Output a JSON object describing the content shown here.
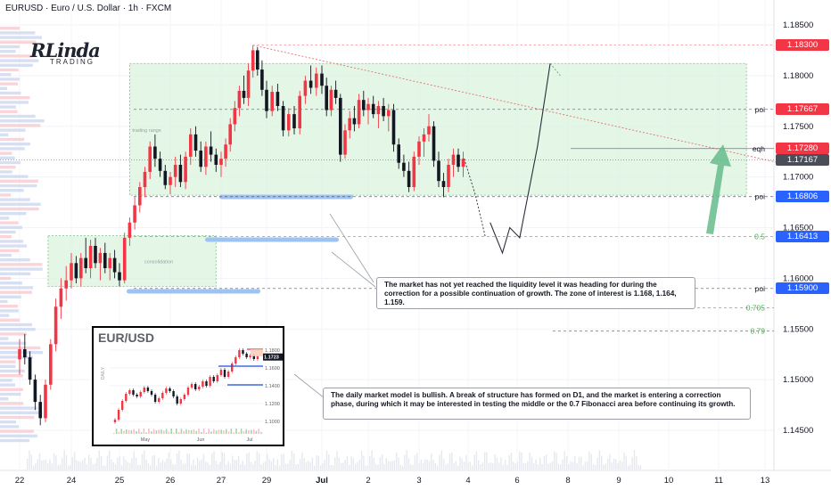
{
  "header": {
    "title": "EURUSD · Euro / U.S. Dollar · 1h · FXCM"
  },
  "logo": {
    "main": "RLinda",
    "sub": "TRADING"
  },
  "chart_data": {
    "type": "candlestick",
    "symbol": "EURUSD",
    "interval": "1h",
    "ylim": [
      1.1415,
      1.1875
    ],
    "y_ticks": [
      1.145,
      1.15,
      1.155,
      1.16,
      1.165,
      1.17,
      1.175,
      1.18,
      1.185
    ],
    "y_tick_labels": [
      "1.14500",
      "1.15000",
      "1.15500",
      "1.16000",
      "1.16500",
      "1.17000",
      "1.17500",
      "1.18000",
      "1.18500"
    ],
    "x_ticks": [
      {
        "label": "22",
        "t": 0
      },
      {
        "label": "24",
        "t": 1
      },
      {
        "label": "25",
        "t": 2
      },
      {
        "label": "26",
        "t": 3
      },
      {
        "label": "27",
        "t": 4
      },
      {
        "label": "29",
        "t": 5
      },
      {
        "label": "Jul",
        "t": 6
      },
      {
        "label": "2",
        "t": 7
      },
      {
        "label": "3",
        "t": 8
      },
      {
        "label": "4",
        "t": 9
      },
      {
        "label": "6",
        "t": 10
      },
      {
        "label": "8",
        "t": 11
      },
      {
        "label": "9",
        "t": 12
      },
      {
        "label": "10",
        "t": 13
      },
      {
        "label": "11",
        "t": 14
      },
      {
        "label": "13",
        "t": 15
      }
    ],
    "price_tags": [
      {
        "label": "1.18300",
        "value": 1.183,
        "color": "#f23645"
      },
      {
        "label": "1.17667",
        "value": 1.17667,
        "color": "#f23645"
      },
      {
        "label": "1.17280",
        "value": 1.1728,
        "color": "#f23645"
      },
      {
        "label": "1.17167",
        "value": 1.17167,
        "color": "#4a4e59"
      },
      {
        "label": "1.16806",
        "value": 1.16806,
        "color": "#2962ff"
      },
      {
        "label": "1.16413",
        "value": 1.16413,
        "color": "#2962ff"
      },
      {
        "label": "1.15900",
        "value": 1.159,
        "color": "#2962ff"
      }
    ],
    "levels": [
      {
        "label": "poi",
        "value": 1.17667
      },
      {
        "label": "eqh",
        "value": 1.1728
      },
      {
        "label": "poi",
        "value": 1.16806
      },
      {
        "label": "0.5",
        "value": 1.16413
      },
      {
        "label": "poi",
        "value": 1.159
      },
      {
        "label": "0.705",
        "value": 1.1571
      },
      {
        "label": "0.79",
        "value": 1.1548
      }
    ],
    "zones": [
      {
        "label": "trading range",
        "t0": 2.2,
        "t1": 14.6,
        "top": 1.1812,
        "bottom": 1.1682
      },
      {
        "label": "consolidation",
        "t0": 0.55,
        "t1": 3.9,
        "top": 1.1642,
        "bottom": 1.1592
      }
    ],
    "candles": [
      {
        "t": 0.0,
        "o": 1.152,
        "h": 1.154,
        "l": 1.1505,
        "c": 1.153
      },
      {
        "t": 0.1,
        "o": 1.153,
        "h": 1.1545,
        "l": 1.1515,
        "c": 1.1522
      },
      {
        "t": 0.2,
        "o": 1.1522,
        "h": 1.1528,
        "l": 1.1495,
        "c": 1.15
      },
      {
        "t": 0.3,
        "o": 1.15,
        "h": 1.1505,
        "l": 1.147,
        "c": 1.1478
      },
      {
        "t": 0.4,
        "o": 1.1478,
        "h": 1.1485,
        "l": 1.1455,
        "c": 1.1462
      },
      {
        "t": 0.5,
        "o": 1.1462,
        "h": 1.15,
        "l": 1.1458,
        "c": 1.1495
      },
      {
        "t": 0.6,
        "o": 1.1495,
        "h": 1.154,
        "l": 1.149,
        "c": 1.1535
      },
      {
        "t": 0.7,
        "o": 1.1535,
        "h": 1.158,
        "l": 1.1528,
        "c": 1.1572
      },
      {
        "t": 0.8,
        "o": 1.1572,
        "h": 1.16,
        "l": 1.156,
        "c": 1.159
      },
      {
        "t": 0.9,
        "o": 1.159,
        "h": 1.1612,
        "l": 1.1578,
        "c": 1.1598
      },
      {
        "t": 1.0,
        "o": 1.1598,
        "h": 1.1625,
        "l": 1.159,
        "c": 1.1615
      },
      {
        "t": 1.1,
        "o": 1.1615,
        "h": 1.1622,
        "l": 1.1595,
        "c": 1.16
      },
      {
        "t": 1.2,
        "o": 1.16,
        "h": 1.1625,
        "l": 1.1592,
        "c": 1.162
      },
      {
        "t": 1.3,
        "o": 1.162,
        "h": 1.164,
        "l": 1.1605,
        "c": 1.161
      },
      {
        "t": 1.4,
        "o": 1.161,
        "h": 1.1638,
        "l": 1.16,
        "c": 1.1632
      },
      {
        "t": 1.5,
        "o": 1.1632,
        "h": 1.164,
        "l": 1.161,
        "c": 1.1615
      },
      {
        "t": 1.6,
        "o": 1.1615,
        "h": 1.163,
        "l": 1.1598,
        "c": 1.1625
      },
      {
        "t": 1.7,
        "o": 1.1625,
        "h": 1.1635,
        "l": 1.1605,
        "c": 1.161
      },
      {
        "t": 1.8,
        "o": 1.161,
        "h": 1.1625,
        "l": 1.1598,
        "c": 1.162
      },
      {
        "t": 1.9,
        "o": 1.162,
        "h": 1.1628,
        "l": 1.16,
        "c": 1.1606
      },
      {
        "t": 2.0,
        "o": 1.1606,
        "h": 1.1615,
        "l": 1.1592,
        "c": 1.1598
      },
      {
        "t": 2.1,
        "o": 1.1598,
        "h": 1.1645,
        "l": 1.1595,
        "c": 1.164
      },
      {
        "t": 2.2,
        "o": 1.164,
        "h": 1.166,
        "l": 1.1632,
        "c": 1.1655
      },
      {
        "t": 2.3,
        "o": 1.1655,
        "h": 1.168,
        "l": 1.1648,
        "c": 1.1672
      },
      {
        "t": 2.4,
        "o": 1.1672,
        "h": 1.1695,
        "l": 1.1665,
        "c": 1.169
      },
      {
        "t": 2.5,
        "o": 1.169,
        "h": 1.171,
        "l": 1.168,
        "c": 1.1705
      },
      {
        "t": 2.6,
        "o": 1.1705,
        "h": 1.1735,
        "l": 1.1698,
        "c": 1.173
      },
      {
        "t": 2.7,
        "o": 1.173,
        "h": 1.1742,
        "l": 1.171,
        "c": 1.1718
      },
      {
        "t": 2.8,
        "o": 1.1718,
        "h": 1.1725,
        "l": 1.17,
        "c": 1.1706
      },
      {
        "t": 2.9,
        "o": 1.1706,
        "h": 1.1712,
        "l": 1.1688,
        "c": 1.1692
      },
      {
        "t": 3.0,
        "o": 1.1692,
        "h": 1.1705,
        "l": 1.1683,
        "c": 1.17
      },
      {
        "t": 3.1,
        "o": 1.17,
        "h": 1.172,
        "l": 1.169,
        "c": 1.1712
      },
      {
        "t": 3.2,
        "o": 1.1712,
        "h": 1.1722,
        "l": 1.169,
        "c": 1.1695
      },
      {
        "t": 3.3,
        "o": 1.1695,
        "h": 1.1725,
        "l": 1.1688,
        "c": 1.172
      },
      {
        "t": 3.4,
        "o": 1.172,
        "h": 1.1748,
        "l": 1.1712,
        "c": 1.1742
      },
      {
        "t": 3.5,
        "o": 1.1742,
        "h": 1.175,
        "l": 1.172,
        "c": 1.1726
      },
      {
        "t": 3.6,
        "o": 1.1726,
        "h": 1.1735,
        "l": 1.1705,
        "c": 1.171
      },
      {
        "t": 3.7,
        "o": 1.171,
        "h": 1.1735,
        "l": 1.1702,
        "c": 1.173
      },
      {
        "t": 3.8,
        "o": 1.173,
        "h": 1.1745,
        "l": 1.1715,
        "c": 1.1722
      },
      {
        "t": 3.9,
        "o": 1.1722,
        "h": 1.1728,
        "l": 1.1705,
        "c": 1.1712
      },
      {
        "t": 4.0,
        "o": 1.1712,
        "h": 1.1725,
        "l": 1.17,
        "c": 1.1718
      },
      {
        "t": 4.1,
        "o": 1.1718,
        "h": 1.1738,
        "l": 1.171,
        "c": 1.1732
      },
      {
        "t": 4.2,
        "o": 1.1732,
        "h": 1.1758,
        "l": 1.1725,
        "c": 1.1752
      },
      {
        "t": 4.3,
        "o": 1.1752,
        "h": 1.1775,
        "l": 1.1745,
        "c": 1.1768
      },
      {
        "t": 4.4,
        "o": 1.1768,
        "h": 1.179,
        "l": 1.176,
        "c": 1.1785
      },
      {
        "t": 4.5,
        "o": 1.1785,
        "h": 1.18,
        "l": 1.1772,
        "c": 1.1778
      },
      {
        "t": 4.6,
        "o": 1.1778,
        "h": 1.1812,
        "l": 1.177,
        "c": 1.1805
      },
      {
        "t": 4.7,
        "o": 1.1805,
        "h": 1.183,
        "l": 1.1798,
        "c": 1.1825
      },
      {
        "t": 4.8,
        "o": 1.1825,
        "h": 1.1828,
        "l": 1.18,
        "c": 1.1806
      },
      {
        "t": 4.9,
        "o": 1.1806,
        "h": 1.1815,
        "l": 1.178,
        "c": 1.1786
      },
      {
        "t": 5.0,
        "o": 1.1786,
        "h": 1.1795,
        "l": 1.1758,
        "c": 1.1765
      },
      {
        "t": 5.1,
        "o": 1.1765,
        "h": 1.179,
        "l": 1.176,
        "c": 1.1784
      },
      {
        "t": 5.2,
        "o": 1.1784,
        "h": 1.1792,
        "l": 1.1765,
        "c": 1.177
      },
      {
        "t": 5.3,
        "o": 1.177,
        "h": 1.1775,
        "l": 1.174,
        "c": 1.1746
      },
      {
        "t": 5.4,
        "o": 1.1746,
        "h": 1.1768,
        "l": 1.174,
        "c": 1.1762
      },
      {
        "t": 5.5,
        "o": 1.1762,
        "h": 1.177,
        "l": 1.1742,
        "c": 1.1748
      },
      {
        "t": 5.6,
        "o": 1.1748,
        "h": 1.1785,
        "l": 1.1742,
        "c": 1.178
      },
      {
        "t": 5.7,
        "o": 1.178,
        "h": 1.18,
        "l": 1.1772,
        "c": 1.1795
      },
      {
        "t": 5.8,
        "o": 1.1795,
        "h": 1.181,
        "l": 1.1782,
        "c": 1.1788
      },
      {
        "t": 5.9,
        "o": 1.1788,
        "h": 1.1808,
        "l": 1.178,
        "c": 1.1802
      },
      {
        "t": 6.0,
        "o": 1.1802,
        "h": 1.181,
        "l": 1.1782,
        "c": 1.179
      },
      {
        "t": 6.1,
        "o": 1.179,
        "h": 1.1798,
        "l": 1.176,
        "c": 1.1766
      },
      {
        "t": 6.2,
        "o": 1.1766,
        "h": 1.179,
        "l": 1.176,
        "c": 1.1786
      },
      {
        "t": 6.3,
        "o": 1.1786,
        "h": 1.1795,
        "l": 1.1772,
        "c": 1.1778
      },
      {
        "t": 6.4,
        "o": 1.1778,
        "h": 1.1782,
        "l": 1.1715,
        "c": 1.1722
      },
      {
        "t": 6.5,
        "o": 1.1722,
        "h": 1.1752,
        "l": 1.1718,
        "c": 1.1746
      },
      {
        "t": 6.6,
        "o": 1.1746,
        "h": 1.1765,
        "l": 1.1738,
        "c": 1.1758
      },
      {
        "t": 6.7,
        "o": 1.1758,
        "h": 1.177,
        "l": 1.1745,
        "c": 1.1752
      },
      {
        "t": 6.8,
        "o": 1.1752,
        "h": 1.1782,
        "l": 1.1748,
        "c": 1.1776
      },
      {
        "t": 6.9,
        "o": 1.1776,
        "h": 1.1785,
        "l": 1.176,
        "c": 1.1766
      },
      {
        "t": 7.0,
        "o": 1.1766,
        "h": 1.1778,
        "l": 1.1752,
        "c": 1.1772
      },
      {
        "t": 7.1,
        "o": 1.1772,
        "h": 1.178,
        "l": 1.1758,
        "c": 1.1762
      },
      {
        "t": 7.2,
        "o": 1.1762,
        "h": 1.1775,
        "l": 1.1748,
        "c": 1.177
      },
      {
        "t": 7.3,
        "o": 1.177,
        "h": 1.1778,
        "l": 1.1755,
        "c": 1.176
      },
      {
        "t": 7.4,
        "o": 1.176,
        "h": 1.1772,
        "l": 1.1745,
        "c": 1.1766
      },
      {
        "t": 7.5,
        "o": 1.1766,
        "h": 1.1772,
        "l": 1.1725,
        "c": 1.1732
      },
      {
        "t": 7.6,
        "o": 1.1732,
        "h": 1.1738,
        "l": 1.1708,
        "c": 1.1714
      },
      {
        "t": 7.7,
        "o": 1.1714,
        "h": 1.1722,
        "l": 1.17,
        "c": 1.1706
      },
      {
        "t": 7.8,
        "o": 1.1706,
        "h": 1.1715,
        "l": 1.1685,
        "c": 1.169
      },
      {
        "t": 7.9,
        "o": 1.169,
        "h": 1.1725,
        "l": 1.1686,
        "c": 1.172
      },
      {
        "t": 8.0,
        "o": 1.172,
        "h": 1.174,
        "l": 1.1712,
        "c": 1.1735
      },
      {
        "t": 8.1,
        "o": 1.1735,
        "h": 1.1748,
        "l": 1.172,
        "c": 1.1742
      },
      {
        "t": 8.2,
        "o": 1.1742,
        "h": 1.1762,
        "l": 1.1735,
        "c": 1.175
      },
      {
        "t": 8.3,
        "o": 1.175,
        "h": 1.1755,
        "l": 1.171,
        "c": 1.1716
      },
      {
        "t": 8.4,
        "o": 1.1716,
        "h": 1.1725,
        "l": 1.169,
        "c": 1.1696
      },
      {
        "t": 8.5,
        "o": 1.1696,
        "h": 1.1704,
        "l": 1.168,
        "c": 1.169
      },
      {
        "t": 8.6,
        "o": 1.169,
        "h": 1.1718,
        "l": 1.1685,
        "c": 1.1712
      },
      {
        "t": 8.7,
        "o": 1.1712,
        "h": 1.1728,
        "l": 1.17,
        "c": 1.1722
      },
      {
        "t": 8.8,
        "o": 1.1722,
        "h": 1.1728,
        "l": 1.1705,
        "c": 1.171
      },
      {
        "t": 8.9,
        "o": 1.171,
        "h": 1.1725,
        "l": 1.17,
        "c": 1.1718
      }
    ],
    "forecast_path": [
      {
        "t": 8.92,
        "v": 1.1718
      },
      {
        "t": 9.15,
        "v": 1.1682
      },
      {
        "t": 9.35,
        "v": 1.1641
      },
      {
        "t": 9.45,
        "v": 1.1655
      },
      {
        "t": 9.7,
        "v": 1.1625
      },
      {
        "t": 9.85,
        "v": 1.165
      },
      {
        "t": 10.05,
        "v": 1.164
      },
      {
        "t": 10.4,
        "v": 1.173
      },
      {
        "t": 10.65,
        "v": 1.1812
      }
    ],
    "trendline": [
      {
        "t": 4.7,
        "v": 1.183
      },
      {
        "t": 15.5,
        "v": 1.1712
      }
    ]
  },
  "notes": [
    "The market has not yet reached the liquidity level it was heading for during the correction for a possible continuation of growth. The zone of interest is 1.168, 1.164, 1.159.",
    "The daily market model is bullish. A break of structure has formed on D1, and the market is entering a correction phase, during which it may be interested in testing the middle or the 0.7 Fibonacci area before continuing its growth."
  ],
  "inset": {
    "title": "EUR/USD",
    "y_label": "DAILY",
    "y_ticks": [
      "1.1800",
      "1.1600",
      "1.1400",
      "1.1200",
      "1.1000"
    ],
    "x_ticks": [
      "May",
      "Jun",
      "Jul"
    ],
    "last_price": "1.1723"
  }
}
